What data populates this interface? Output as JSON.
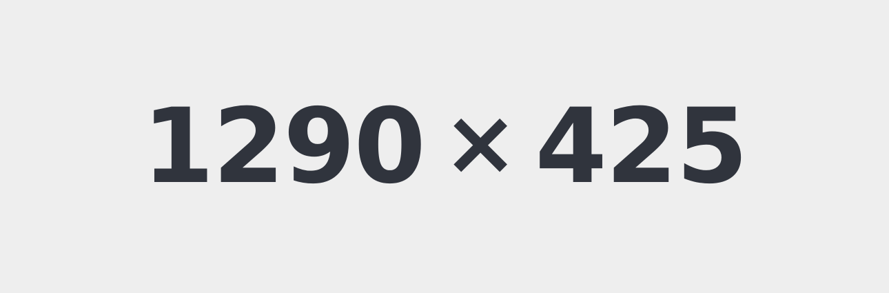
{
  "placeholder": {
    "width_text": "1290",
    "separator": "×",
    "height_text": "425",
    "background_color": "#eeeeee",
    "text_color": "#30343d"
  }
}
